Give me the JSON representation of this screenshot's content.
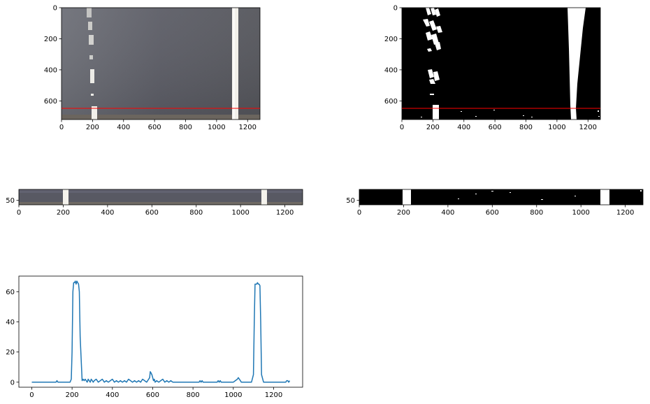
{
  "chart_data": [
    {
      "type": "image",
      "description_tag": "top-left-warped-road-image",
      "xlim": [
        0,
        1280
      ],
      "ylim": [
        720,
        0
      ],
      "xticks": [
        "0",
        "200",
        "400",
        "600",
        "800",
        "1000",
        "1200"
      ],
      "yticks": [
        "0",
        "200",
        "400",
        "600"
      ],
      "reference_line_y": 650,
      "reference_line_color": "#ff0000",
      "lane_line_color": "#f2f0ea"
    },
    {
      "type": "image",
      "description_tag": "top-right-binary-lane-mask",
      "xlim": [
        0,
        1280
      ],
      "ylim": [
        720,
        0
      ],
      "xticks": [
        "0",
        "200",
        "400",
        "600",
        "800",
        "1000",
        "1200"
      ],
      "yticks": [
        "0",
        "200",
        "400",
        "600"
      ],
      "reference_line_y": 650,
      "reference_line_color": "#ff0000"
    },
    {
      "type": "image",
      "description_tag": "middle-left-road-strip",
      "xlim": [
        0,
        1280
      ],
      "ylim": [
        70,
        0
      ],
      "xticks": [
        "0",
        "200",
        "400",
        "600",
        "800",
        "1000",
        "1200"
      ],
      "yticks": [
        "50"
      ]
    },
    {
      "type": "image",
      "description_tag": "middle-right-binary-strip",
      "xlim": [
        0,
        1280
      ],
      "ylim": [
        70,
        0
      ],
      "xticks": [
        "0",
        "200",
        "400",
        "600",
        "800",
        "1000",
        "1200"
      ],
      "yticks": [
        "50"
      ]
    },
    {
      "type": "line",
      "xlim": [
        -64,
        1344
      ],
      "ylim": [
        -3.35,
        70.35
      ],
      "xticks": [
        "0",
        "200",
        "400",
        "600",
        "800",
        "1000",
        "1200"
      ],
      "yticks": [
        "0",
        "20",
        "40",
        "60"
      ],
      "grid": false,
      "series": [
        {
          "color": "#1f77b4",
          "x": [
            0,
            120,
            125,
            130,
            135,
            140,
            190,
            196,
            200,
            204,
            208,
            212,
            216,
            220,
            224,
            228,
            232,
            236,
            240,
            250,
            255,
            260,
            265,
            270,
            275,
            280,
            285,
            290,
            295,
            300,
            305,
            310,
            320,
            330,
            340,
            350,
            360,
            370,
            380,
            390,
            400,
            410,
            420,
            430,
            440,
            450,
            460,
            470,
            480,
            490,
            500,
            510,
            520,
            530,
            540,
            550,
            560,
            570,
            580,
            585,
            588,
            592,
            596,
            600,
            604,
            608,
            612,
            620,
            630,
            640,
            650,
            660,
            670,
            680,
            690,
            700,
            740,
            800,
            830,
            835,
            840,
            845,
            850,
            860,
            870,
            900,
            920,
            925,
            930,
            935,
            940,
            960,
            1000,
            1010,
            1020,
            1025,
            1030,
            1035,
            1040,
            1050,
            1060,
            1070,
            1080,
            1090,
            1100,
            1104,
            1108,
            1112,
            1116,
            1120,
            1124,
            1128,
            1132,
            1136,
            1140,
            1150,
            1160,
            1200,
            1260,
            1265,
            1270,
            1275,
            1280
          ],
          "y": [
            0,
            0,
            1,
            0,
            0,
            0,
            0,
            2,
            20,
            60,
            66,
            66,
            67,
            65,
            67,
            66,
            65,
            60,
            30,
            1,
            2,
            1,
            2,
            1,
            0,
            2,
            1,
            0,
            2,
            1,
            0,
            1,
            2,
            0,
            1,
            2,
            0,
            1,
            0,
            1,
            2,
            0,
            1,
            0,
            1,
            0,
            1,
            0,
            2,
            1,
            0,
            1,
            0,
            1,
            0,
            2,
            1,
            0,
            2,
            3,
            7,
            6,
            5,
            3,
            1,
            2,
            0,
            1,
            0,
            1,
            2,
            0,
            1,
            0,
            1,
            0,
            0,
            0,
            0,
            1,
            0,
            1,
            0,
            0,
            0,
            0,
            0,
            1,
            0,
            1,
            0,
            0,
            0,
            1,
            2,
            3,
            2,
            1,
            0,
            0,
            0,
            0,
            0,
            0,
            5,
            40,
            65,
            65,
            65,
            66,
            65,
            65,
            64,
            40,
            5,
            0,
            0,
            0,
            0,
            1,
            1,
            0,
            1
          ]
        }
      ]
    }
  ]
}
